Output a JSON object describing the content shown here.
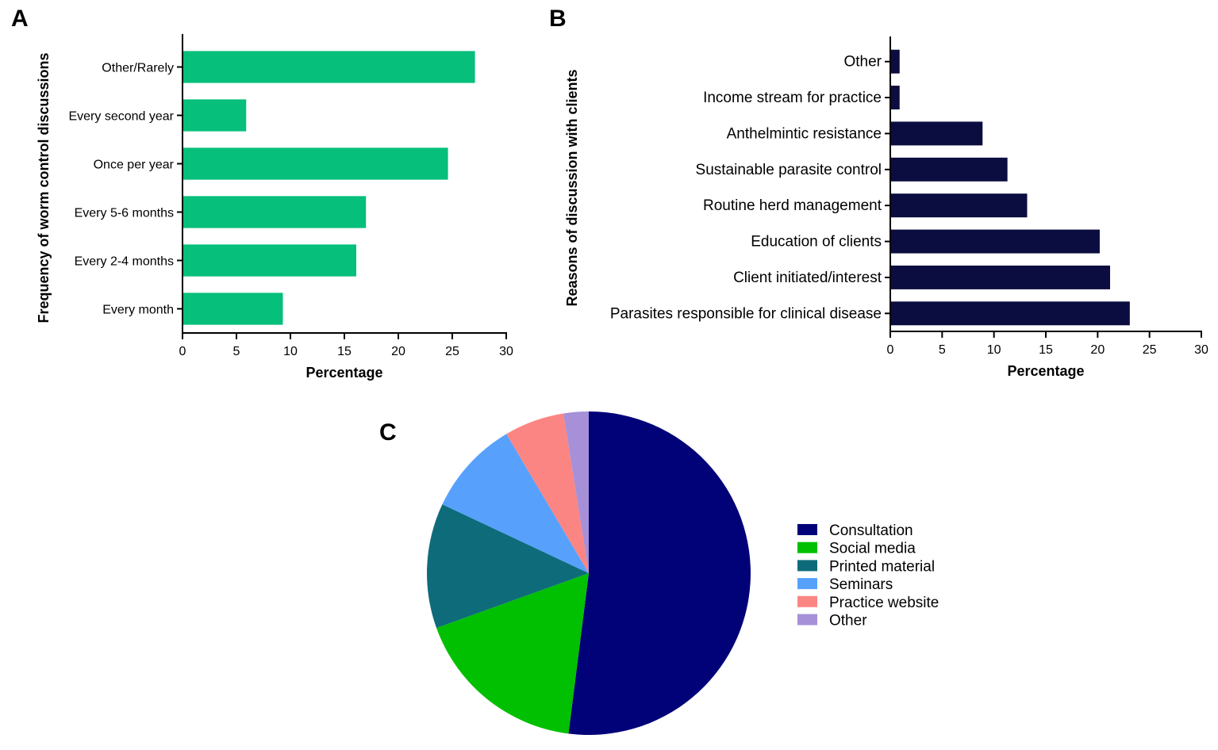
{
  "chart_data": [
    {
      "panel": "A",
      "type": "bar",
      "orientation": "horizontal",
      "categories": [
        "Other/Rarely",
        "Every second year",
        "Once per year",
        "Every 5-6 months",
        "Every 2-4 months",
        "Every month"
      ],
      "values": [
        27.1,
        5.9,
        24.6,
        17.0,
        16.1,
        9.3
      ],
      "xlabel": "Percentage",
      "ylabel": "Frequency of worm control discussions",
      "xlim": [
        0,
        30
      ],
      "xticks": [
        "0",
        "5",
        "10",
        "15",
        "20",
        "25",
        "30"
      ],
      "color": "#05bf7a"
    },
    {
      "panel": "B",
      "type": "bar",
      "orientation": "horizontal",
      "categories": [
        "Other",
        "Income stream for practice",
        "Anthelmintic resistance",
        "Sustainable parasite control",
        "Routine herd management",
        "Education of clients",
        "Client initiated/interest",
        "Parasites responsible for clinical disease"
      ],
      "values": [
        0.9,
        0.9,
        8.9,
        11.3,
        13.2,
        20.2,
        21.2,
        23.1
      ],
      "xlabel": "Percentage",
      "ylabel": "Reasons of discussion with clients",
      "xlim": [
        0,
        30
      ],
      "xticks": [
        "0",
        "5",
        "10",
        "15",
        "20",
        "25",
        "30"
      ],
      "color": "#0b0c3f"
    },
    {
      "panel": "C",
      "type": "pie",
      "labels": [
        "Consultation",
        "Social media",
        "Printed material",
        "Seminars",
        "Practice website",
        "Other"
      ],
      "values": [
        52.0,
        17.5,
        12.5,
        9.5,
        6.0,
        2.5
      ],
      "colors": [
        "#010178",
        "#00c001",
        "#0e6c7a",
        "#57a1fd",
        "#fb8582",
        "#a690d8"
      ],
      "legend_position": "right"
    }
  ]
}
